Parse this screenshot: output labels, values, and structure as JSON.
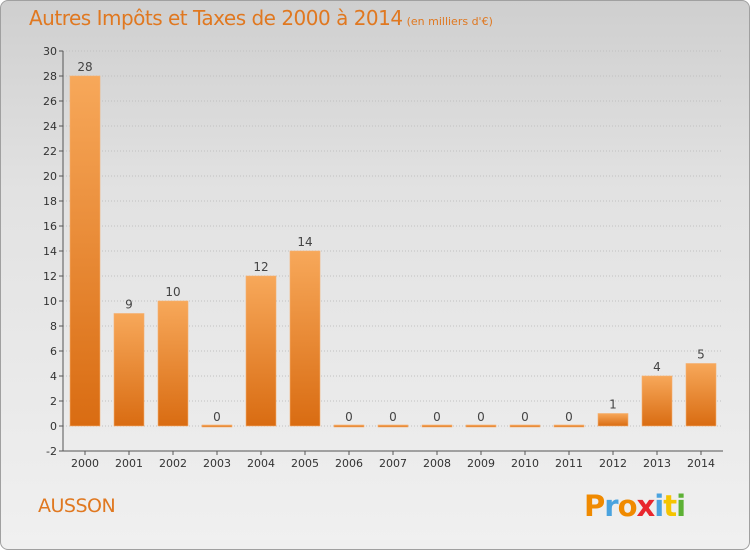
{
  "header": {
    "title": "Autres Impôts et Taxes de 2000 à 2014",
    "subtitle": "(en milliers d'€)"
  },
  "footer": {
    "commune": "AUSSON",
    "brand": "Proxiti",
    "brand_letter_colors": [
      "#f08a00",
      "#4aa3df",
      "#f08a00",
      "#e8262e",
      "#4aa3df",
      "#f5c400",
      "#5db135"
    ]
  },
  "colors": {
    "bar_light": "#f7a85a",
    "bar_dark": "#d96c12",
    "title": "#e07820",
    "grid": "#c0c0c0"
  },
  "chart_data": {
    "type": "bar",
    "categories": [
      "2000",
      "2001",
      "2002",
      "2003",
      "2004",
      "2005",
      "2006",
      "2007",
      "2008",
      "2009",
      "2010",
      "2011",
      "2012",
      "2013",
      "2014"
    ],
    "values": [
      28,
      9,
      10,
      0,
      12,
      14,
      0,
      0,
      0,
      0,
      0,
      0,
      1,
      4,
      5
    ],
    "data_labels": [
      "28",
      "9",
      "10",
      "0",
      "12",
      "14",
      "0",
      "0",
      "0",
      "0",
      "0",
      "0",
      "1",
      "4",
      "5"
    ],
    "ylim": [
      -2,
      30
    ],
    "yticks": [
      -2,
      0,
      2,
      4,
      6,
      8,
      10,
      12,
      14,
      16,
      18,
      20,
      22,
      24,
      26,
      28,
      30
    ],
    "grid": true,
    "legend": "none"
  }
}
